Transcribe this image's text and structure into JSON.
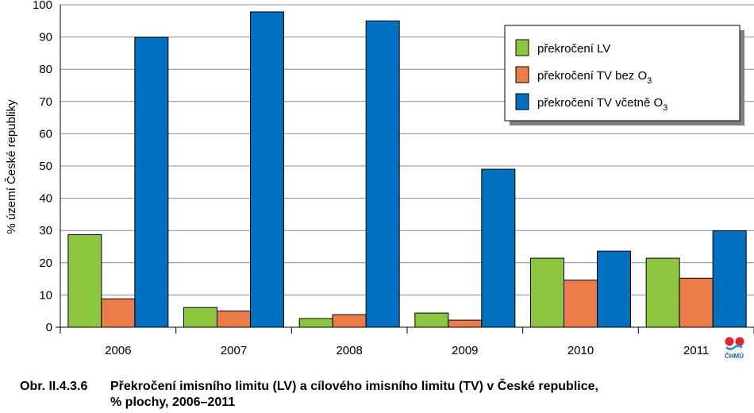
{
  "chart_data": {
    "type": "bar",
    "categories": [
      "2006",
      "2007",
      "2008",
      "2009",
      "2010",
      "2011"
    ],
    "series": [
      {
        "name": "překročení LV",
        "name_base": "překročení LV",
        "name_sub": "",
        "color": "#8dc63f",
        "values": [
          28.7,
          6.1,
          2.7,
          4.4,
          21.4,
          21.4
        ]
      },
      {
        "name": "překročení TV bez O3",
        "name_base": "překročení TV bez O",
        "name_sub": "3",
        "color": "#ec7c4a",
        "values": [
          8.8,
          5.0,
          3.9,
          2.2,
          14.6,
          15.2
        ]
      },
      {
        "name": "překročení TV včetně O3",
        "name_base": "překročení TV včetně O",
        "name_sub": "3",
        "color": "#0070c0",
        "values": [
          89.9,
          97.8,
          95.0,
          49.0,
          23.6,
          29.9
        ]
      }
    ],
    "ylabel": "% území České republiky",
    "ylim": [
      0,
      100
    ],
    "yticks": [
      0,
      10,
      20,
      30,
      40,
      50,
      60,
      70,
      80,
      90,
      100
    ],
    "grid": true,
    "legend_position": "top-right"
  },
  "logo": {
    "text": "ČHMÚ"
  },
  "caption": {
    "number": "Obr. II.4.3.6",
    "title_line1": "Překročení imisního limitu (LV) a cílového imisního limitu (TV) v České republice,",
    "title_line2": "% plochy, 2006–2011"
  }
}
